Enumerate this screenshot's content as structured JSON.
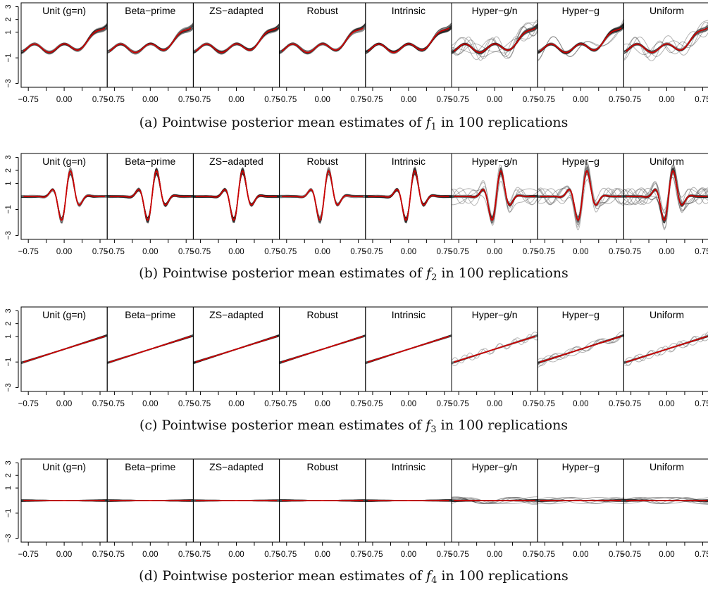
{
  "chart_data": [
    {
      "type": "line",
      "function": "f1",
      "caption": {
        "prefix": "(a)  Pointwise posterior mean estimates of ",
        "fname": "f",
        "fsub": "1",
        "suffix": " in 100 replications"
      },
      "panels": [
        "Unit (g=n)",
        "Beta−prime",
        "ZS−adapted",
        "Robust",
        "Intrinsic",
        "Hyper−g/n",
        "Hyper−g",
        "Uniform"
      ],
      "x_ticks": [
        -0.75,
        0.0,
        0.75
      ],
      "x_tick_labels": [
        "−0.75",
        "0.00",
        "0.75"
      ],
      "y_ticks": [
        3,
        2,
        1,
        -1,
        -3
      ],
      "y_tick_labels": [
        "3",
        "2",
        "1",
        "−1",
        "−3"
      ],
      "xlim": [
        -0.9,
        0.9
      ],
      "ylim": [
        -3.3,
        3.3
      ],
      "replications": 100,
      "line_colors": {
        "replications": "#222222",
        "truth": "#cc0000"
      }
    },
    {
      "type": "line",
      "function": "f2",
      "caption": {
        "prefix": "(b)  Pointwise posterior mean estimates of ",
        "fname": "f",
        "fsub": "2",
        "suffix": " in 100 replications"
      },
      "panels": [
        "Unit (g=n)",
        "Beta−prime",
        "ZS−adapted",
        "Robust",
        "Intrinsic",
        "Hyper−g/n",
        "Hyper−g",
        "Uniform"
      ],
      "x_ticks": [
        -0.75,
        0.0,
        0.75
      ],
      "x_tick_labels": [
        "−0.75",
        "0.00",
        "0.75"
      ],
      "y_ticks": [
        3,
        2,
        1,
        -1,
        -3
      ],
      "y_tick_labels": [
        "3",
        "2",
        "1",
        "−1",
        "−3"
      ],
      "xlim": [
        -0.9,
        0.9
      ],
      "ylim": [
        -3.3,
        3.3
      ],
      "replications": 100,
      "line_colors": {
        "replications": "#222222",
        "truth": "#cc0000"
      }
    },
    {
      "type": "line",
      "function": "f3",
      "caption": {
        "prefix": "(c)  Pointwise posterior mean estimates of ",
        "fname": "f",
        "fsub": "3",
        "suffix": " in 100 replications"
      },
      "panels": [
        "Unit (g=n)",
        "Beta−prime",
        "ZS−adapted",
        "Robust",
        "Intrinsic",
        "Hyper−g/n",
        "Hyper−g",
        "Uniform"
      ],
      "x_ticks": [
        -0.75,
        0.0,
        0.75
      ],
      "x_tick_labels": [
        "−0.75",
        "0.00",
        "0.75"
      ],
      "y_ticks": [
        3,
        2,
        1,
        -1,
        -3
      ],
      "y_tick_labels": [
        "3",
        "2",
        "1",
        "−1",
        "−3"
      ],
      "xlim": [
        -0.9,
        0.9
      ],
      "ylim": [
        -3.3,
        3.3
      ],
      "replications": 100,
      "line_colors": {
        "replications": "#222222",
        "truth": "#cc0000"
      }
    },
    {
      "type": "line",
      "function": "f4",
      "caption": {
        "prefix": "(d)  Pointwise posterior mean estimates of ",
        "fname": "f",
        "fsub": "4",
        "suffix": " in 100 replications"
      },
      "panels": [
        "Unit (g=n)",
        "Beta−prime",
        "ZS−adapted",
        "Robust",
        "Intrinsic",
        "Hyper−g/n",
        "Hyper−g",
        "Uniform"
      ],
      "x_ticks": [
        -0.75,
        0.0,
        0.75
      ],
      "x_tick_labels": [
        "−0.75",
        "0.00",
        "0.75"
      ],
      "y_ticks": [
        3,
        2,
        1,
        -1,
        -3
      ],
      "y_tick_labels": [
        "3",
        "2",
        "1",
        "−1",
        "−3"
      ],
      "xlim": [
        -0.9,
        0.9
      ],
      "ylim": [
        -3.3,
        3.3
      ],
      "replications": 100,
      "line_colors": {
        "replications": "#222222",
        "truth": "#cc0000"
      }
    }
  ]
}
